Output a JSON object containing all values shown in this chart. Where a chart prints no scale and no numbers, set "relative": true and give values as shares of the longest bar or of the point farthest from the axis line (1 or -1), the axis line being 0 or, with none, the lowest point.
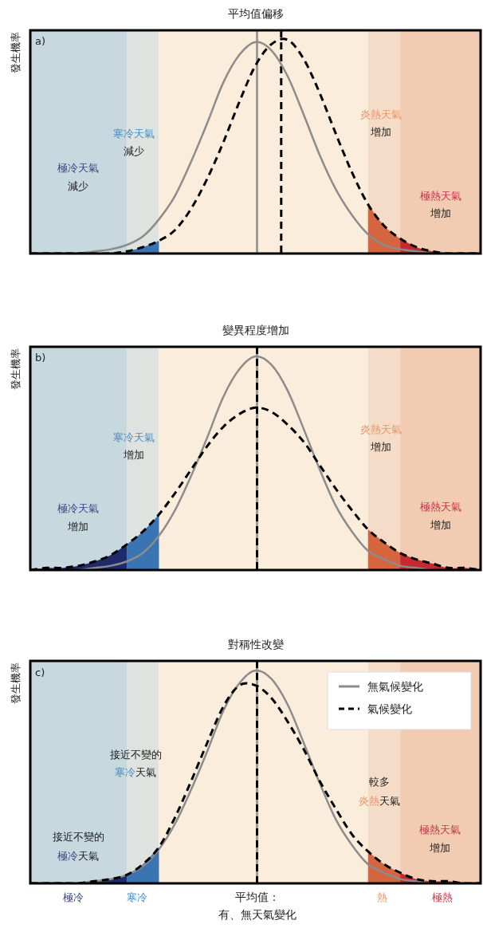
{
  "chart_data": [
    {
      "type": "line",
      "title": "平均值偏移",
      "ylabel": "發生機率",
      "relative": true,
      "legend": false,
      "marker": "none",
      "categories": [
        null,
        null,
        null,
        null,
        null,
        null,
        null,
        null,
        null,
        null,
        null,
        null,
        null,
        null,
        null,
        null,
        null,
        null,
        null,
        null,
        null,
        null,
        null,
        null,
        null,
        null,
        null,
        null,
        null
      ],
      "series": [
        {
          "type": "area",
          "color": "#3b74b3",
          "values": [
            null,
            null,
            null,
            null,
            null,
            null,
            0.01,
            0.03,
            0.06,
            null,
            null,
            null,
            null,
            null,
            null,
            null,
            null,
            null,
            null,
            null,
            null,
            null,
            null,
            null,
            null,
            null,
            null,
            null,
            null
          ]
        },
        {
          "type": "area",
          "color": "#d5653e",
          "values": [
            null,
            null,
            null,
            null,
            null,
            null,
            null,
            null,
            null,
            null,
            null,
            null,
            null,
            null,
            null,
            null,
            null,
            null,
            null,
            null,
            null,
            0.23,
            0.13,
            0.07,
            null,
            null,
            null,
            null,
            null
          ]
        },
        {
          "type": "area",
          "color": "#c42a30",
          "values": [
            null,
            null,
            null,
            null,
            null,
            null,
            null,
            null,
            null,
            null,
            null,
            null,
            null,
            null,
            null,
            null,
            null,
            null,
            null,
            null,
            null,
            null,
            null,
            0.07,
            0.03,
            0.01,
            0,
            0,
            0
          ]
        },
        {
          "type": "line",
          "color": "#8c8c8c",
          "line_style": "solid",
          "values": [
            0,
            0,
            0,
            0,
            0.01,
            0.02,
            0.04,
            0.08,
            0.16,
            0.27,
            0.43,
            0.61,
            0.8,
            0.93,
            0.99,
            0.95,
            0.83,
            0.65,
            0.46,
            0.3,
            0.18,
            0.09,
            0.04,
            0.02,
            0.01,
            0,
            0,
            0,
            0
          ]
        },
        {
          "type": "line",
          "color": "#000000",
          "line_style": "dashed",
          "values": [
            0,
            0,
            0,
            0,
            0,
            0,
            0.01,
            0.03,
            0.06,
            0.11,
            0.21,
            0.35,
            0.52,
            0.71,
            0.88,
            0.98,
            1,
            0.91,
            0.75,
            0.56,
            0.38,
            0.23,
            0.13,
            0.07,
            0.03,
            0.01,
            0,
            0,
            0
          ]
        }
      ],
      "annotations": [
        "a)",
        "寒冷天氣",
        "減少",
        "極冷天氣",
        "減少",
        "炎熱天氣",
        "增加",
        "極熱天氣",
        "增加"
      ]
    },
    {
      "type": "line",
      "title": "變異程度增加",
      "ylabel": "發生機率",
      "relative": true,
      "legend": false,
      "marker": "none",
      "categories": [
        null,
        null,
        null,
        null,
        null,
        null,
        null,
        null,
        null,
        null,
        null,
        null,
        null,
        null,
        null,
        null,
        null,
        null,
        null,
        null,
        null,
        null,
        null,
        null,
        null,
        null,
        null,
        null,
        null
      ],
      "series": [
        {
          "type": "area",
          "color": "#1f2a6b",
          "values": [
            0,
            0.01,
            0.01,
            0.02,
            0.04,
            0.07,
            0.12,
            null,
            null,
            null,
            null,
            null,
            null,
            null,
            null,
            null,
            null,
            null,
            null,
            null,
            null,
            null,
            null,
            null,
            null,
            null,
            null,
            null,
            null
          ]
        },
        {
          "type": "area",
          "color": "#3b74b3",
          "values": [
            null,
            null,
            null,
            null,
            null,
            null,
            0.12,
            0.18,
            0.26,
            null,
            null,
            null,
            null,
            null,
            null,
            null,
            null,
            null,
            null,
            null,
            null,
            null,
            null,
            null,
            null,
            null,
            null,
            null,
            null
          ]
        },
        {
          "type": "area",
          "color": "#d5653e",
          "values": [
            null,
            null,
            null,
            null,
            null,
            null,
            null,
            null,
            null,
            null,
            null,
            null,
            null,
            null,
            null,
            null,
            null,
            null,
            null,
            null,
            null,
            0.19,
            0.13,
            0.08,
            null,
            null,
            null,
            null,
            null
          ]
        },
        {
          "type": "area",
          "color": "#c42a30",
          "values": [
            null,
            null,
            null,
            null,
            null,
            null,
            null,
            null,
            null,
            null,
            null,
            null,
            null,
            null,
            null,
            null,
            null,
            null,
            null,
            null,
            null,
            null,
            null,
            0.08,
            0.05,
            0.03,
            0.01,
            0.01,
            0
          ]
        },
        {
          "type": "line",
          "color": "#8c8c8c",
          "line_style": "solid",
          "values": [
            0,
            0,
            0,
            0,
            0.01,
            0.02,
            0.04,
            0.08,
            0.16,
            0.28,
            0.44,
            0.62,
            0.81,
            0.94,
            1,
            0.96,
            0.84,
            0.66,
            0.47,
            0.3,
            0.18,
            0.09,
            0.05,
            0.02,
            0.01,
            0,
            0,
            0,
            0
          ]
        },
        {
          "type": "line",
          "color": "#000000",
          "line_style": "dashed",
          "values": [
            0,
            0.01,
            0.01,
            0.02,
            0.04,
            0.07,
            0.12,
            0.18,
            0.26,
            0.36,
            0.47,
            0.58,
            0.67,
            0.73,
            0.76,
            0.74,
            0.68,
            0.6,
            0.49,
            0.38,
            0.28,
            0.19,
            0.13,
            0.08,
            0.05,
            0.03,
            0.01,
            0.01,
            0
          ]
        }
      ],
      "annotations": [
        "b)",
        "寒冷天氣",
        "增加",
        "極冷天氣",
        "增加",
        "炎熱天氣",
        "增加",
        "極熱天氣",
        "增加"
      ]
    },
    {
      "type": "line",
      "title": "對稱性改變",
      "ylabel": "發生機率",
      "relative": true,
      "legend": "top right",
      "marker": "none",
      "categories": [
        null,
        null,
        null,
        null,
        null,
        null,
        null,
        null,
        null,
        null,
        null,
        null,
        null,
        null,
        null,
        null,
        null,
        null,
        null,
        null,
        null,
        null,
        null,
        null,
        null,
        null,
        null,
        null,
        null
      ],
      "series": [
        {
          "type": "area",
          "color": "#1f2a6b",
          "values": [
            0,
            0,
            0,
            0,
            0.01,
            0.02,
            0.04,
            null,
            null,
            null,
            null,
            null,
            null,
            null,
            null,
            null,
            null,
            null,
            null,
            null,
            null,
            null,
            null,
            null,
            null,
            null,
            null,
            null,
            null
          ]
        },
        {
          "type": "area",
          "color": "#3b74b3",
          "values": [
            null,
            null,
            null,
            null,
            null,
            null,
            0.04,
            0.09,
            0.17,
            null,
            null,
            null,
            null,
            null,
            null,
            null,
            null,
            null,
            null,
            null,
            null,
            null,
            null,
            null,
            null,
            null,
            null,
            null,
            null
          ]
        },
        {
          "type": "area",
          "color": "#d5653e",
          "values": [
            null,
            null,
            null,
            null,
            null,
            null,
            null,
            null,
            null,
            null,
            null,
            null,
            null,
            null,
            null,
            null,
            null,
            null,
            null,
            null,
            null,
            0.15,
            0.09,
            0.05,
            null,
            null,
            null,
            null,
            null
          ]
        },
        {
          "type": "area",
          "color": "#c42a30",
          "values": [
            null,
            null,
            null,
            null,
            null,
            null,
            null,
            null,
            null,
            null,
            null,
            null,
            null,
            null,
            null,
            null,
            null,
            null,
            null,
            null,
            null,
            null,
            null,
            0.05,
            0.02,
            0.01,
            0.01,
            0,
            0
          ]
        },
        {
          "type": "line",
          "name": "無氣候變化",
          "color": "#8c8c8c",
          "line_style": "solid",
          "values": [
            0,
            0,
            0,
            0,
            0.01,
            0.02,
            0.04,
            0.08,
            0.16,
            0.28,
            0.44,
            0.62,
            0.81,
            0.94,
            1,
            0.96,
            0.84,
            0.66,
            0.47,
            0.3,
            0.18,
            0.09,
            0.05,
            0.02,
            0.01,
            0,
            0,
            0,
            0
          ]
        },
        {
          "type": "line",
          "name": "氣候變化",
          "color": "#000000",
          "line_style": "dashed",
          "values": [
            0,
            0,
            0,
            0,
            0.01,
            0.02,
            0.04,
            0.09,
            0.17,
            0.31,
            0.48,
            0.66,
            0.83,
            0.93,
            0.93,
            0.87,
            0.76,
            0.63,
            0.48,
            0.35,
            0.23,
            0.15,
            0.09,
            0.05,
            0.02,
            0.01,
            0.01,
            0,
            0
          ]
        }
      ],
      "annotations": [
        "c)",
        "接近不變的",
        "寒冷",
        "天氣",
        "接近不變的",
        "極冷",
        "天氣",
        "較多",
        "炎熱",
        "天氣",
        "極熱天氣",
        "增加",
        "極冷",
        "寒冷",
        "平均值：有、無天氣變化",
        "熱",
        "極熱"
      ]
    }
  ]
}
